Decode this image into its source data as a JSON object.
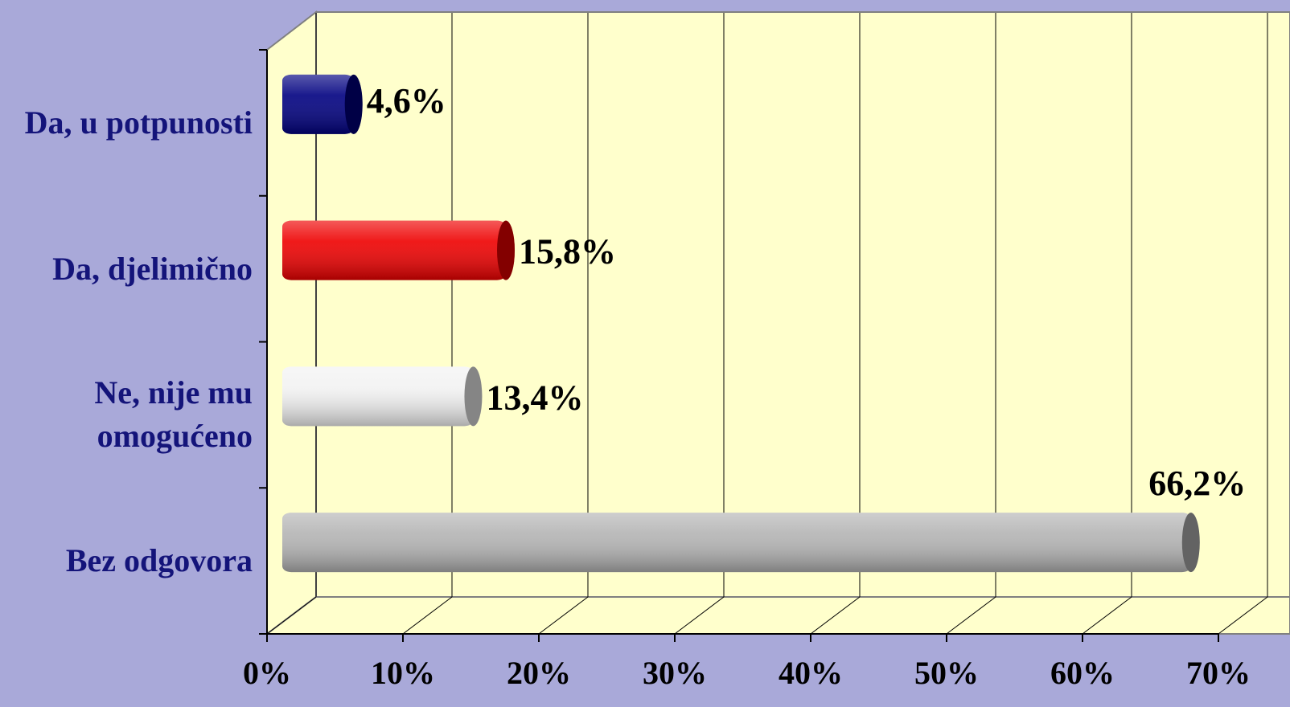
{
  "chart_data": {
    "type": "bar",
    "orientation": "horizontal",
    "categories": [
      "Da, u potpunosti",
      "Da, djelimično",
      "Ne, nije mu omogućeno",
      "Bez odgovora"
    ],
    "values": [
      4.6,
      15.8,
      13.4,
      66.2
    ],
    "value_labels": [
      "4,6%",
      "15,8%",
      "13,4%",
      "66,2%"
    ],
    "colors": [
      "#000080",
      "#ee0000",
      "#f2f2f2",
      "#b4b4b4"
    ],
    "xlim": [
      0,
      70
    ],
    "xticks": [
      {
        "value": 0,
        "label": "0%"
      },
      {
        "value": 10,
        "label": "10%"
      },
      {
        "value": 20,
        "label": "20%"
      },
      {
        "value": 30,
        "label": "30%"
      },
      {
        "value": 40,
        "label": "40%"
      },
      {
        "value": 50,
        "label": "50%"
      },
      {
        "value": 60,
        "label": "60%"
      },
      {
        "value": 70,
        "label": "70%"
      }
    ],
    "grid": true
  }
}
